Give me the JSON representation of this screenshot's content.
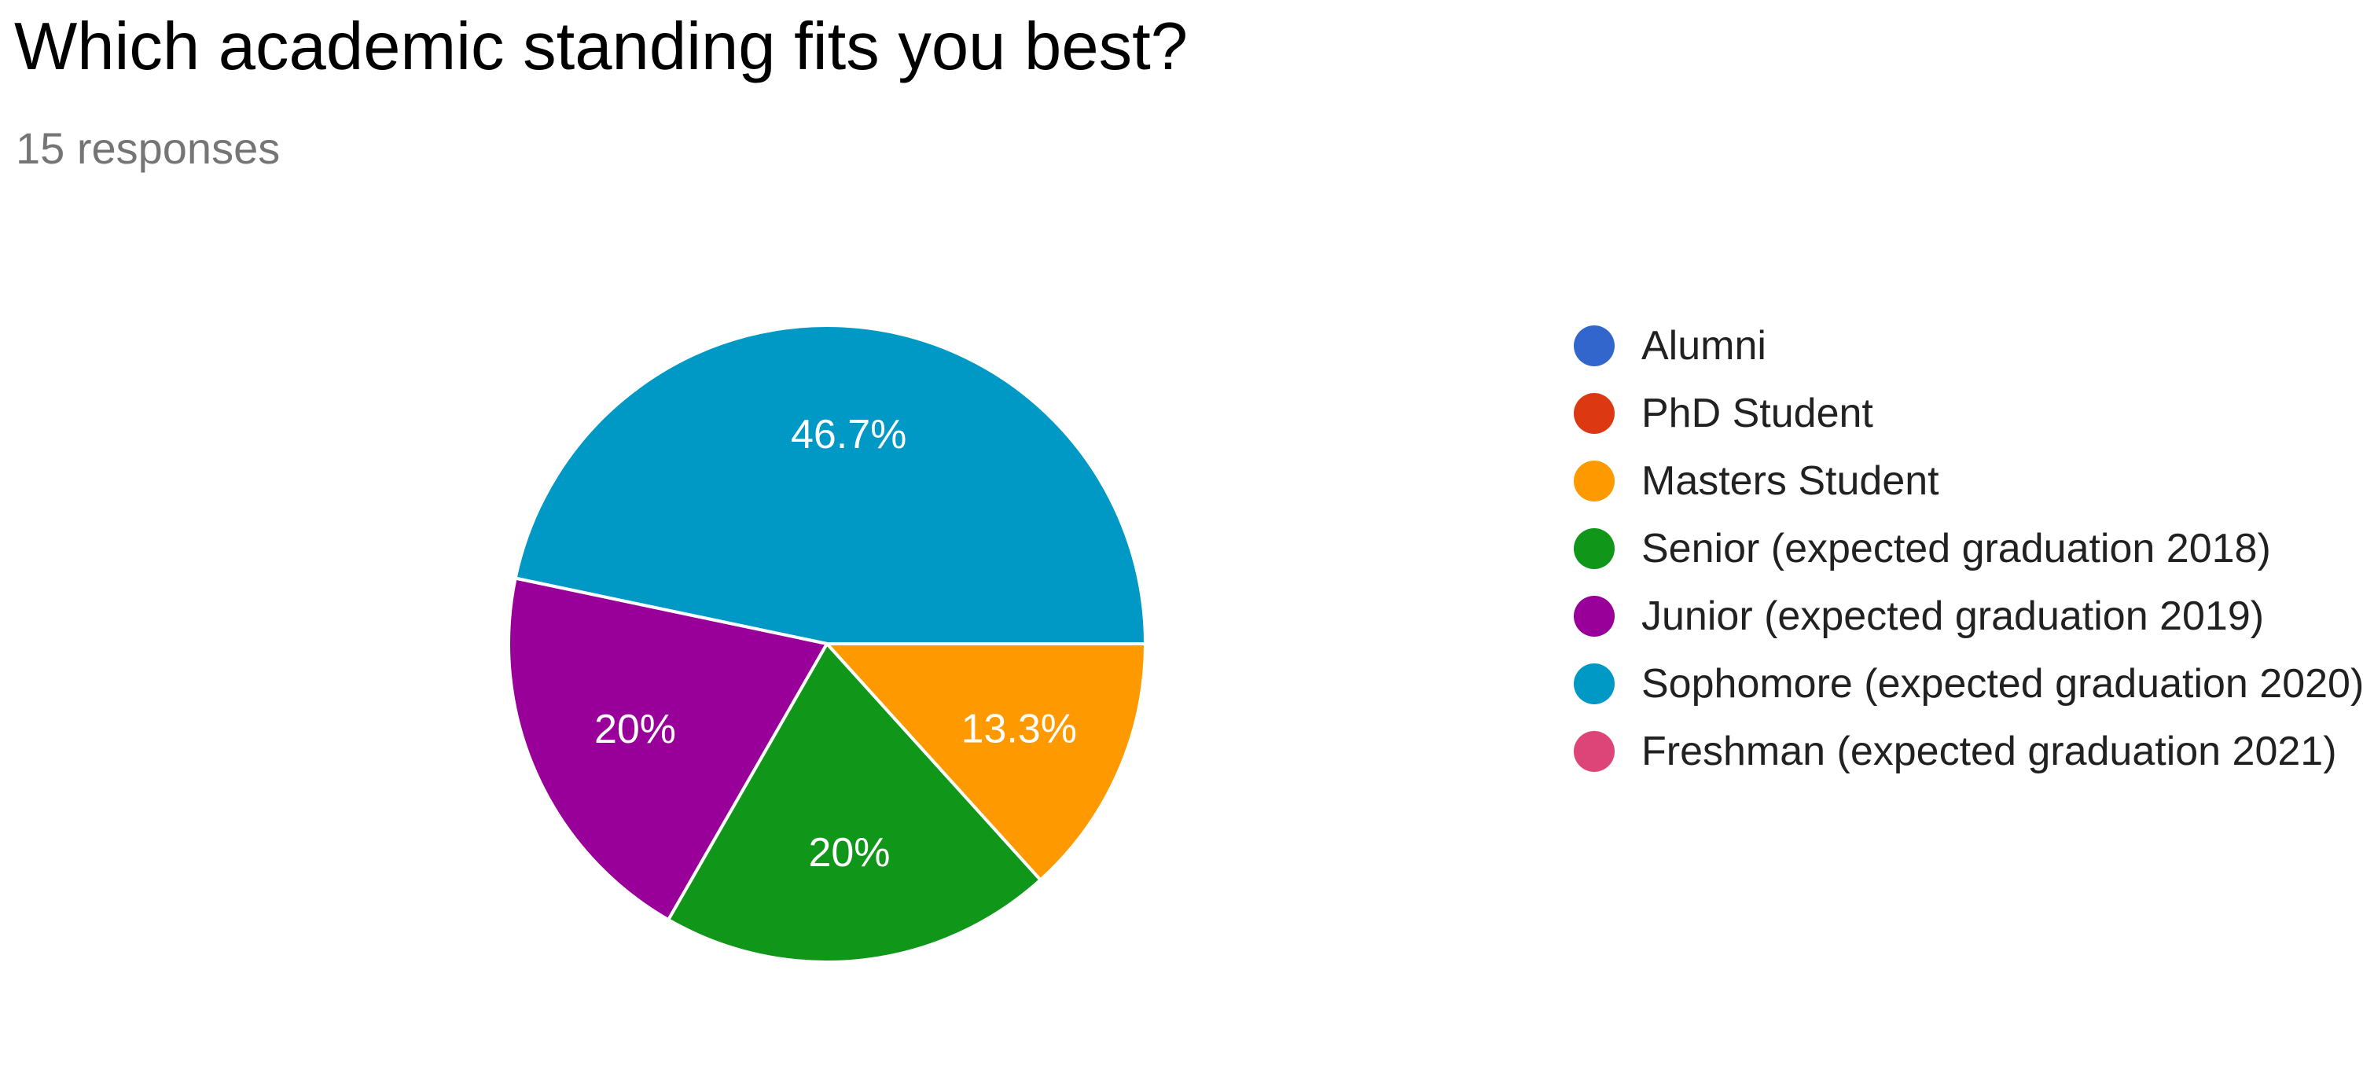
{
  "chart": {
    "title": "Which academic standing fits you best?",
    "subtitle": "15 responses"
  },
  "chart_data": {
    "type": "pie",
    "title": "Which academic standing fits you best?",
    "subtitle": "15 responses",
    "legend_position": "right",
    "slices": [
      {
        "label": "Alumni",
        "value": 0,
        "percent_label": "",
        "color": "#3366cc"
      },
      {
        "label": "PhD Student",
        "value": 0,
        "percent_label": "",
        "color": "#dc3912"
      },
      {
        "label": "Masters Student",
        "value": 13.3,
        "percent_label": "13.3%",
        "color": "#ff9900"
      },
      {
        "label": "Senior (expected graduation 2018)",
        "value": 20,
        "percent_label": "20%",
        "color": "#109618"
      },
      {
        "label": "Junior (expected graduation 2019)",
        "value": 20,
        "percent_label": "20%",
        "color": "#990099"
      },
      {
        "label": "Sophomore (expected graduation 2020)",
        "value": 46.7,
        "percent_label": "46.7%",
        "color": "#0099c6"
      },
      {
        "label": "Freshman (expected graduation 2021)",
        "value": 0,
        "percent_label": "",
        "color": "#dd4477"
      }
    ]
  }
}
